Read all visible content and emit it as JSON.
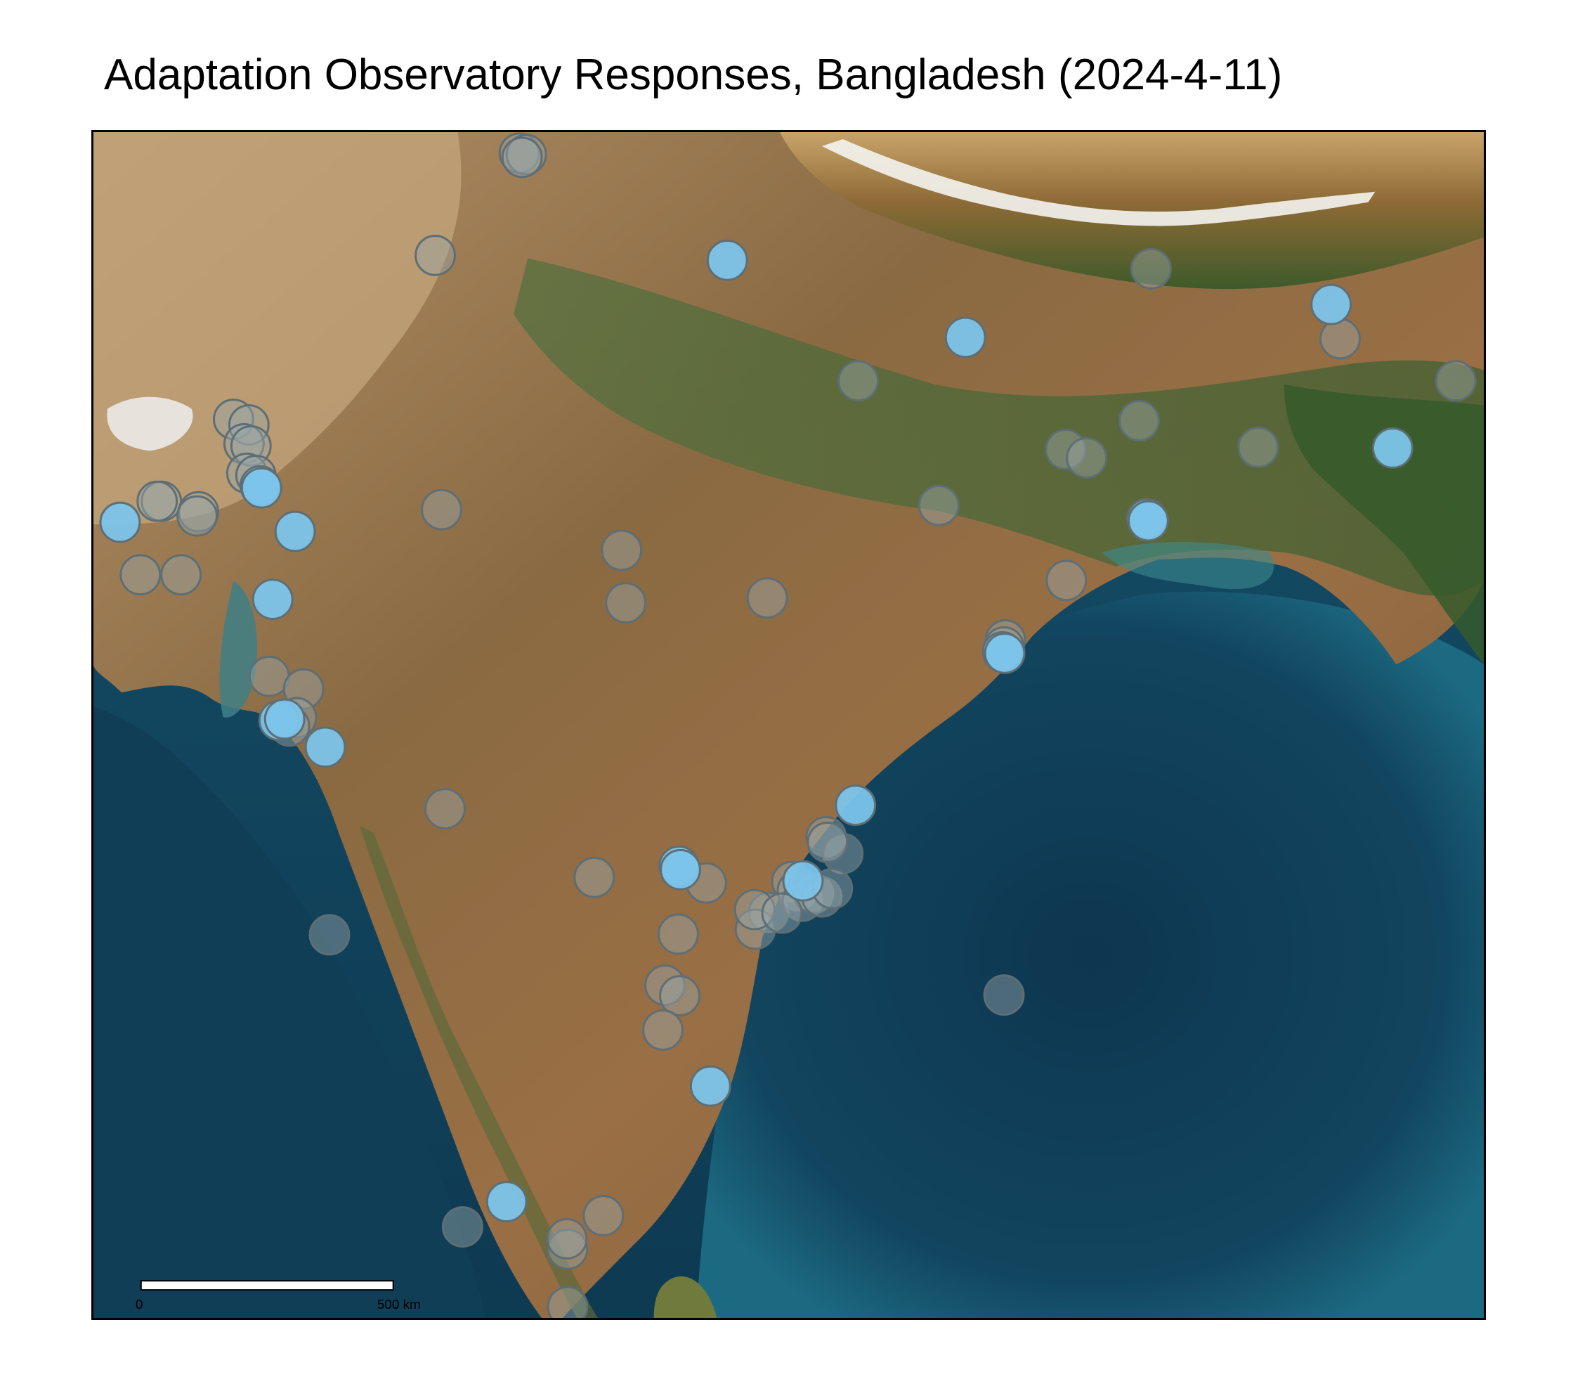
{
  "title": "Adaptation Observatory Responses, Bangladesh (2024-4-11)",
  "scale_bar": {
    "start_label": "0",
    "end_label": "500 km"
  },
  "colors": {
    "ocean_deep": "#0f3d55",
    "ocean_shelf": "#1f6f86",
    "land_arid": "#a8794f",
    "land_green": "#4c6b3a",
    "mountains": "#7a5a2e",
    "snow": "#f4f4f0",
    "marker_highlight": "#7cc4ea",
    "marker_default": "#9aa7a9",
    "marker_stroke": "#5e6e74"
  },
  "legend_note": "",
  "markers": {
    "highlighted_count": 22,
    "default_count": 63
  }
}
